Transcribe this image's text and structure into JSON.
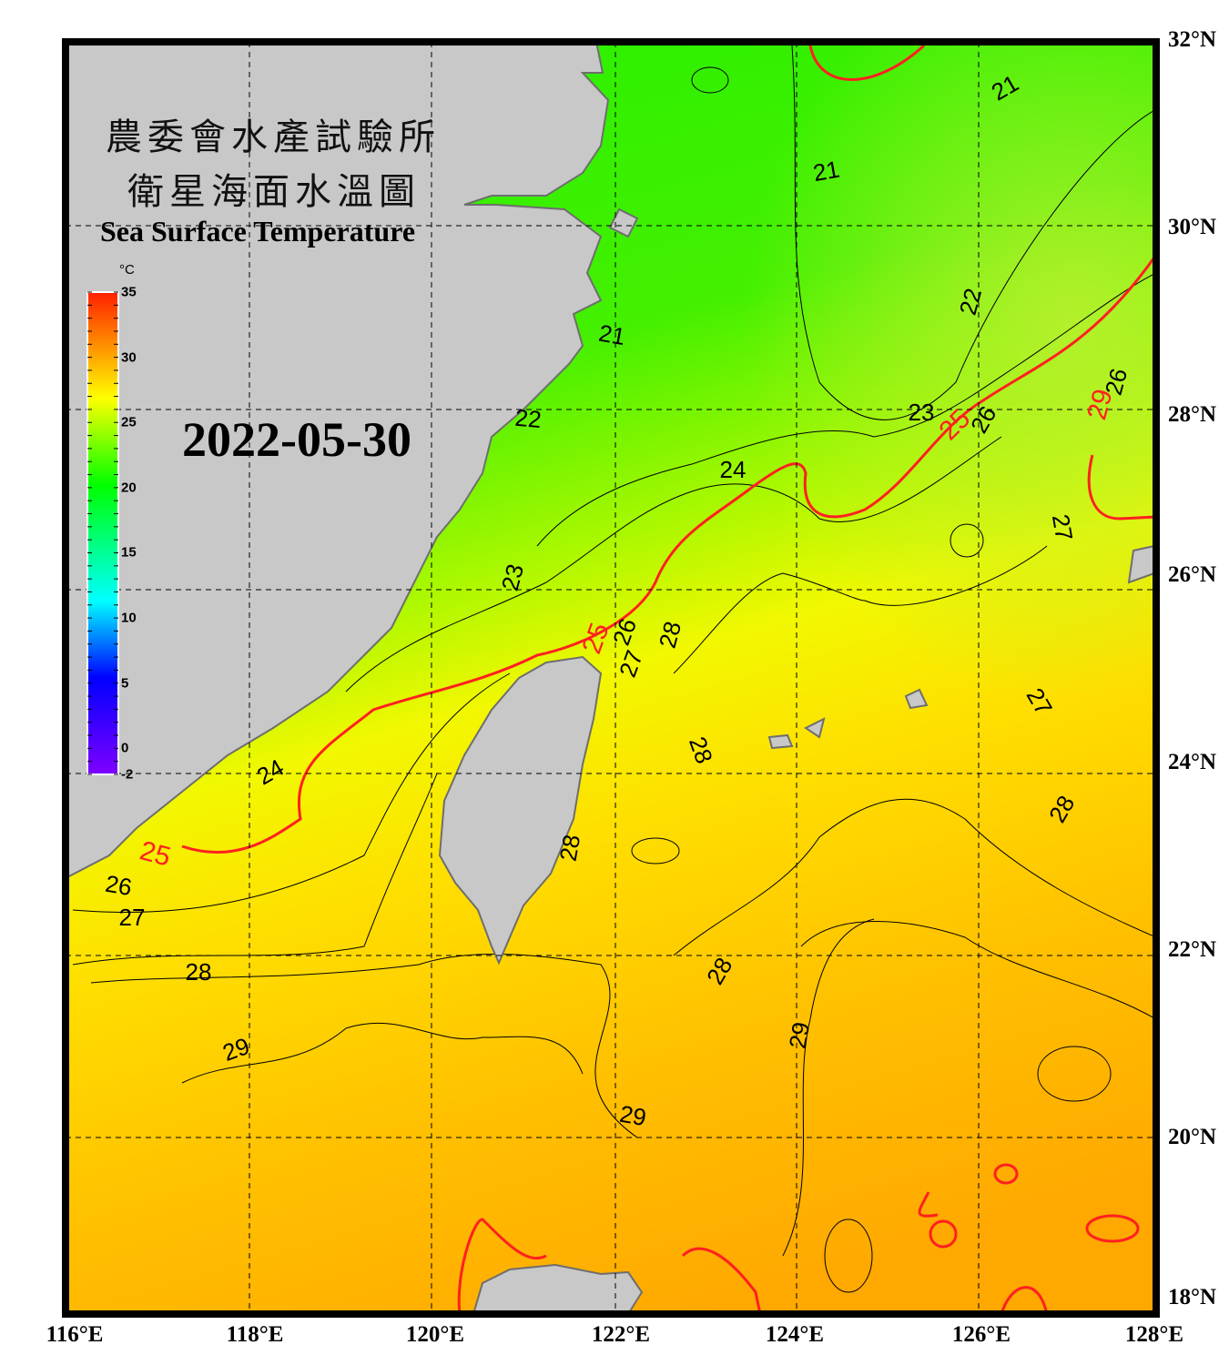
{
  "title": {
    "line1": "農委會水產試驗所",
    "line2": "衛星海面水溫圖",
    "english": "Sea Surface Temperature",
    "date": "2022-05-30"
  },
  "colorbar": {
    "unit": "°C",
    "min": -2,
    "max": 35,
    "ticks": [
      "35",
      "30",
      "25",
      "20",
      "15",
      "10",
      "5",
      "0",
      "-2"
    ],
    "colors": [
      "#7f00ff",
      "#0000ff",
      "#00ffff",
      "#00ff00",
      "#ffff00",
      "#ff8000",
      "#ff0000"
    ]
  },
  "axes": {
    "longitude_labels": [
      "116°E",
      "118°E",
      "120°E",
      "122°E",
      "124°E",
      "126°E",
      "128°E"
    ],
    "latitude_labels": [
      "32°N",
      "30°N",
      "28°N",
      "26°N",
      "24°N",
      "22°N",
      "20°N",
      "18°N"
    ]
  },
  "contour_labels": [
    "21",
    "21",
    "21",
    "22",
    "22",
    "23",
    "23",
    "24",
    "24",
    "25",
    "25",
    "25",
    "26",
    "26",
    "26",
    "26",
    "27",
    "27",
    "27",
    "27",
    "28",
    "28",
    "28",
    "28",
    "28",
    "28",
    "29",
    "29",
    "29",
    "29"
  ],
  "colors": {
    "land": "#c8c8c8",
    "coast": "#6e6e6e",
    "highlight_contour": "#ff2020",
    "contour": "#000000",
    "frame": "#000000"
  }
}
